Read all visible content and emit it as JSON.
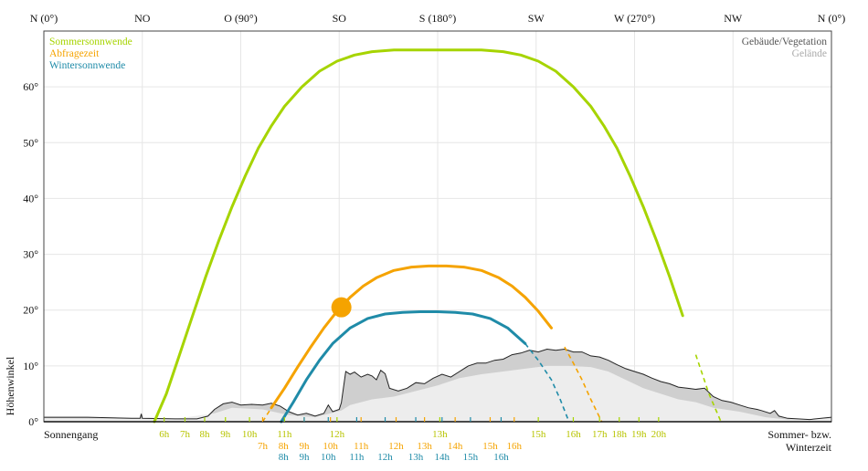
{
  "chart_data": {
    "type": "line",
    "ylabel": "Höhenwinkel",
    "x_axis": {
      "unit": "azimuth_deg",
      "range": [
        0,
        360
      ],
      "top_labels": [
        {
          "az": 0,
          "label": "N (0°)"
        },
        {
          "az": 45,
          "label": "NO"
        },
        {
          "az": 90,
          "label": "O (90°)"
        },
        {
          "az": 135,
          "label": "SO"
        },
        {
          "az": 180,
          "label": "S (180°)"
        },
        {
          "az": 225,
          "label": "SW"
        },
        {
          "az": 270,
          "label": "W (270°)"
        },
        {
          "az": 315,
          "label": "NW"
        },
        {
          "az": 360,
          "label": "N (0°)"
        }
      ]
    },
    "y_axis": {
      "range": [
        0,
        70
      ],
      "ticks": [
        {
          "v": 0,
          "label": "0°"
        },
        {
          "v": 10,
          "label": "10°"
        },
        {
          "v": 20,
          "label": "20°"
        },
        {
          "v": 30,
          "label": "30°"
        },
        {
          "v": 40,
          "label": "40°"
        },
        {
          "v": 50,
          "label": "50°"
        },
        {
          "v": 60,
          "label": "60°"
        }
      ]
    },
    "grid": true,
    "legend_left": [
      {
        "label": "Sommersonnwende",
        "color": "#a6d400"
      },
      {
        "label": "Abfragezeit",
        "color": "#f5a300"
      },
      {
        "label": "Wintersonnwende",
        "color": "#1f8ba8"
      }
    ],
    "legend_right": [
      {
        "label": "Gebäude/Vegetation",
        "color": "#555555"
      },
      {
        "label": "Gelände",
        "color": "#aaaaaa"
      }
    ],
    "bottom_left_label": "Sonnengang",
    "bottom_right_label_1": "Sommer- bzw.",
    "bottom_right_label_2": "Winterzeit",
    "sun_position": {
      "az": 136,
      "alt": 20.5
    },
    "series": [
      {
        "name": "Sommersonnwende",
        "color": "#a6d400",
        "points": [
          [
            50.5,
            0
          ],
          [
            56,
            5
          ],
          [
            62,
            12
          ],
          [
            68,
            19
          ],
          [
            74,
            26
          ],
          [
            80,
            32.5
          ],
          [
            86,
            38.5
          ],
          [
            92,
            44
          ],
          [
            98,
            49
          ],
          [
            104,
            53
          ],
          [
            110,
            56.5
          ],
          [
            118,
            60
          ],
          [
            126,
            62.8
          ],
          [
            134,
            64.6
          ],
          [
            142,
            65.7
          ],
          [
            150,
            66.3
          ],
          [
            160,
            66.6
          ],
          [
            170,
            66.6
          ],
          [
            180,
            66.6
          ],
          [
            190,
            66.6
          ],
          [
            200,
            66.6
          ],
          [
            210,
            66.3
          ],
          [
            218,
            65.7
          ],
          [
            226,
            64.6
          ],
          [
            234,
            62.8
          ],
          [
            242,
            60
          ],
          [
            250,
            56.5
          ],
          [
            256,
            53
          ],
          [
            262,
            49
          ],
          [
            268,
            44
          ],
          [
            274,
            38.5
          ],
          [
            280,
            32.5
          ],
          [
            286,
            26
          ],
          [
            292,
            19
          ],
          [
            298,
            12
          ],
          [
            304,
            5
          ],
          [
            309.5,
            0
          ]
        ],
        "dashed_from_az": 297,
        "hours": [
          {
            "az": 55,
            "label": "6h"
          },
          {
            "az": 64.5,
            "label": "7h"
          },
          {
            "az": 73.5,
            "label": "8h"
          },
          {
            "az": 83,
            "label": "9h"
          },
          {
            "az": 94,
            "label": "10h"
          },
          {
            "az": 110,
            "label": "11h"
          },
          {
            "az": 134,
            "label": "12h"
          },
          {
            "az": 181,
            "label": "13h"
          },
          {
            "az": 226,
            "label": "15h"
          },
          {
            "az": 242,
            "label": "16h"
          },
          {
            "az": 254,
            "label": "17h"
          },
          {
            "az": 263,
            "label": "18h"
          },
          {
            "az": 272,
            "label": "19h"
          },
          {
            "az": 281,
            "label": "20h"
          }
        ]
      },
      {
        "name": "Abfragezeit",
        "color": "#f5a300",
        "points": [
          [
            100,
            0
          ],
          [
            104,
            2.5
          ],
          [
            110,
            6
          ],
          [
            116,
            9.8
          ],
          [
            122,
            13.4
          ],
          [
            128,
            16.8
          ],
          [
            134,
            19.8
          ],
          [
            140,
            22.3
          ],
          [
            146,
            24.3
          ],
          [
            152,
            25.8
          ],
          [
            160,
            27.1
          ],
          [
            168,
            27.7
          ],
          [
            176,
            27.9
          ],
          [
            180,
            27.9
          ],
          [
            184,
            27.9
          ],
          [
            192,
            27.7
          ],
          [
            200,
            27.1
          ],
          [
            208,
            25.8
          ],
          [
            214,
            24.3
          ],
          [
            220,
            22.3
          ],
          [
            226,
            19.8
          ],
          [
            232,
            16.8
          ],
          [
            238,
            13.4
          ],
          [
            242,
            10.5
          ],
          [
            246,
            7.5
          ],
          [
            250,
            4
          ],
          [
            255,
            0
          ]
        ],
        "dashed_start_to_az": 104,
        "dashed_from_az": 234,
        "hours": [
          {
            "az": 100,
            "label": "7h"
          },
          {
            "az": 109.5,
            "label": "8h"
          },
          {
            "az": 119,
            "label": "9h"
          },
          {
            "az": 131,
            "label": "10h"
          },
          {
            "az": 145,
            "label": "11h"
          },
          {
            "az": 161,
            "label": "12h"
          },
          {
            "az": 174,
            "label": "13h"
          },
          {
            "az": 188,
            "label": "14h"
          },
          {
            "az": 204,
            "label": "15h"
          },
          {
            "az": 215,
            "label": "16h"
          }
        ]
      },
      {
        "name": "Wintersonnwende",
        "color": "#1f8ba8",
        "points": [
          [
            108.5,
            0
          ],
          [
            114,
            3.5
          ],
          [
            120,
            7.5
          ],
          [
            126,
            11
          ],
          [
            132,
            14
          ],
          [
            140,
            16.8
          ],
          [
            148,
            18.5
          ],
          [
            156,
            19.3
          ],
          [
            164,
            19.6
          ],
          [
            172,
            19.7
          ],
          [
            180,
            19.7
          ],
          [
            188,
            19.6
          ],
          [
            196,
            19.3
          ],
          [
            204,
            18.5
          ],
          [
            212,
            16.8
          ],
          [
            220,
            14
          ],
          [
            226,
            11
          ],
          [
            232,
            7.5
          ],
          [
            236,
            4
          ],
          [
            240,
            0
          ]
        ],
        "dashed_from_az": 220,
        "hours": [
          {
            "az": 109.5,
            "label": "8h"
          },
          {
            "az": 119,
            "label": "9h"
          },
          {
            "az": 130,
            "label": "10h"
          },
          {
            "az": 143,
            "label": "11h"
          },
          {
            "az": 156,
            "label": "12h"
          },
          {
            "az": 170,
            "label": "13h"
          },
          {
            "az": 182,
            "label": "14h"
          },
          {
            "az": 195,
            "label": "15h"
          },
          {
            "az": 209,
            "label": "16h"
          }
        ]
      }
    ],
    "terrain_outline": [
      [
        0,
        0.8
      ],
      [
        20,
        0.8
      ],
      [
        40,
        0.6
      ],
      [
        44,
        0.6
      ],
      [
        44.5,
        1.4
      ],
      [
        45,
        0.6
      ],
      [
        60,
        0.5
      ],
      [
        70,
        0.5
      ],
      [
        75,
        1.0
      ],
      [
        78,
        2.2
      ],
      [
        82,
        3.2
      ],
      [
        86,
        3.5
      ],
      [
        90,
        3.0
      ],
      [
        95,
        3.1
      ],
      [
        100,
        3.0
      ],
      [
        104,
        3.3
      ],
      [
        108,
        2.8
      ],
      [
        112,
        1.8
      ],
      [
        116,
        1.2
      ],
      [
        120,
        1.5
      ],
      [
        124,
        1.0
      ],
      [
        128,
        1.5
      ],
      [
        130,
        3.0
      ],
      [
        132,
        1.8
      ],
      [
        135,
        2.2
      ],
      [
        136,
        3.4
      ],
      [
        138,
        9.0
      ],
      [
        140,
        8.5
      ],
      [
        142,
        8.9
      ],
      [
        145,
        8.0
      ],
      [
        148,
        8.5
      ],
      [
        150,
        8.2
      ],
      [
        152,
        7.5
      ],
      [
        154,
        9.2
      ],
      [
        156,
        8.6
      ],
      [
        158,
        6.0
      ],
      [
        162,
        5.5
      ],
      [
        166,
        6.0
      ],
      [
        170,
        7.0
      ],
      [
        174,
        6.8
      ],
      [
        178,
        7.8
      ],
      [
        182,
        8.5
      ],
      [
        186,
        8.0
      ],
      [
        190,
        9.0
      ],
      [
        194,
        10.0
      ],
      [
        198,
        10.5
      ],
      [
        202,
        10.5
      ],
      [
        206,
        11.0
      ],
      [
        210,
        11.2
      ],
      [
        214,
        12.0
      ],
      [
        218,
        12.3
      ],
      [
        222,
        12.8
      ],
      [
        226,
        12.5
      ],
      [
        230,
        13.0
      ],
      [
        234,
        12.8
      ],
      [
        238,
        13.0
      ],
      [
        242,
        12.5
      ],
      [
        246,
        12.5
      ],
      [
        250,
        11.8
      ],
      [
        254,
        11.6
      ],
      [
        258,
        11.0
      ],
      [
        262,
        10.2
      ],
      [
        266,
        9.5
      ],
      [
        270,
        9.0
      ],
      [
        274,
        8.5
      ],
      [
        278,
        7.8
      ],
      [
        282,
        7.2
      ],
      [
        286,
        6.8
      ],
      [
        290,
        6.2
      ],
      [
        294,
        6.0
      ],
      [
        298,
        5.8
      ],
      [
        302,
        6.0
      ],
      [
        306,
        4.5
      ],
      [
        310,
        3.8
      ],
      [
        314,
        3.5
      ],
      [
        318,
        3.0
      ],
      [
        322,
        2.5
      ],
      [
        326,
        2.2
      ],
      [
        328,
        2.0
      ],
      [
        332,
        1.5
      ],
      [
        334,
        2.0
      ],
      [
        336,
        1.0
      ],
      [
        340,
        0.6
      ],
      [
        350,
        0.4
      ],
      [
        360,
        0.8
      ]
    ],
    "terrain_light": [
      [
        0,
        0.6
      ],
      [
        60,
        0.5
      ],
      [
        78,
        1.5
      ],
      [
        86,
        2.5
      ],
      [
        100,
        2.2
      ],
      [
        112,
        1.2
      ],
      [
        124,
        0.8
      ],
      [
        136,
        2.0
      ],
      [
        140,
        3.0
      ],
      [
        150,
        4.0
      ],
      [
        160,
        4.5
      ],
      [
        170,
        5.5
      ],
      [
        180,
        6.5
      ],
      [
        190,
        7.8
      ],
      [
        200,
        8.5
      ],
      [
        210,
        9.0
      ],
      [
        220,
        9.5
      ],
      [
        230,
        10.0
      ],
      [
        240,
        10.0
      ],
      [
        250,
        9.8
      ],
      [
        258,
        9.0
      ],
      [
        266,
        7.5
      ],
      [
        274,
        6.0
      ],
      [
        282,
        5.0
      ],
      [
        290,
        4.0
      ],
      [
        298,
        3.5
      ],
      [
        306,
        2.5
      ],
      [
        318,
        1.8
      ],
      [
        330,
        0.8
      ],
      [
        340,
        0.4
      ],
      [
        360,
        0.6
      ]
    ]
  }
}
